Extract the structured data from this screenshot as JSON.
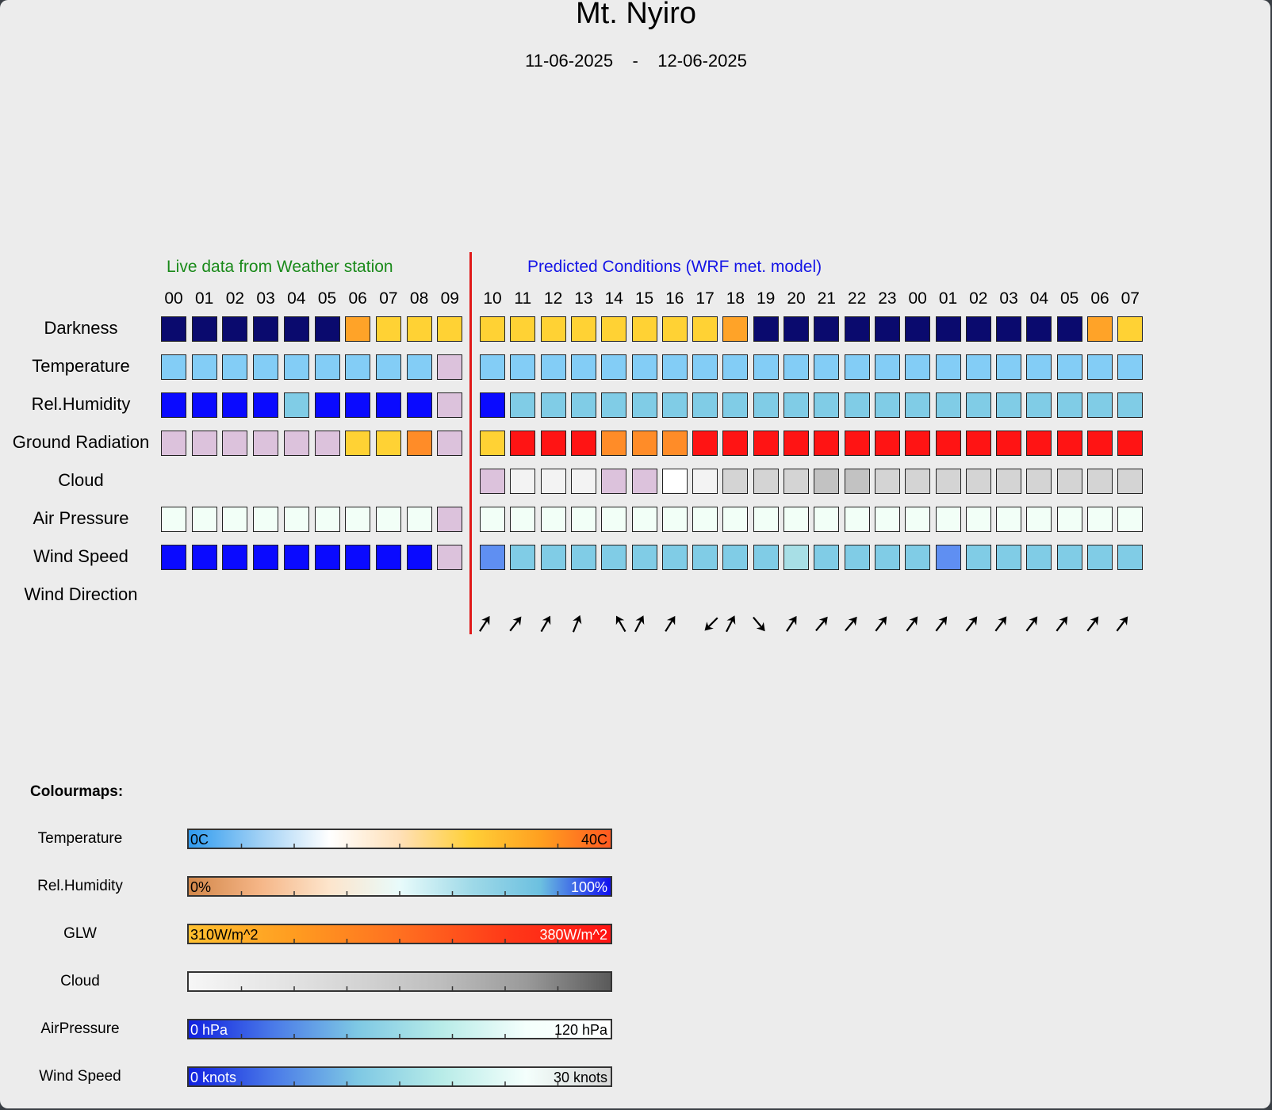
{
  "header": {
    "title": "Mt. Nyiro",
    "date_start": "11-06-2025",
    "date_sep": "-",
    "date_end": "12-06-2025"
  },
  "sections": {
    "live": "Live data from Weather station",
    "predicted": "Predicted Conditions (WRF met. model)"
  },
  "hours": [
    "00",
    "01",
    "02",
    "03",
    "04",
    "05",
    "06",
    "07",
    "08",
    "09",
    "10",
    "11",
    "12",
    "13",
    "14",
    "15",
    "16",
    "17",
    "18",
    "19",
    "20",
    "21",
    "22",
    "23",
    "00",
    "01",
    "02",
    "03",
    "04",
    "05",
    "06",
    "07"
  ],
  "palette": {
    "N": "#0a0a6e",
    "O": "#ffa328",
    "Y": "#ffd234",
    "L": "#83cdf6",
    "P": "#dcc2dc",
    "B": "#0a0aff",
    "S": "#80cce6",
    "R": "#ff1414",
    "F": "#ff8c28",
    "W": "#f3f3f3",
    "X": "#ffffff",
    "G": "#d4d4d4",
    "H": "#c2c2c2",
    "A": "#f2fff7",
    "M": "#5f8ff2",
    "T": "#a8dfe6"
  },
  "rows": [
    {
      "label": "Darkness",
      "cells": "NNNNNNOYYY YYYYYYYYONNNNNNNNNNNOY"
    },
    {
      "label": "Temperature",
      "cells": "LLLLLLLLLP LLLLLLLLLLLLLLLLLLLLLL"
    },
    {
      "label": "Rel.Humidity",
      "cells": "BBBBSBBBBP BSSSSSSSSSSSSSSSSSSSSS"
    },
    {
      "label": "Ground Radiation",
      "cells": "PPPPPPYYFP YRRRFFFRRRRRRRRRRRRRRR"
    },
    {
      "label": "Cloud",
      "cells": ".......... PWWWPPXWGGGHHGGGGGGGGG"
    },
    {
      "label": "Air Pressure",
      "cells": "AAAAAAAAAP AAAAAAAAAAAAAAAAAAAAAA"
    },
    {
      "label": "Wind Speed",
      "cells": "BBBBBBBBBP MSSSSSSSSSTSSSSMSSSSSS"
    },
    {
      "label": "Wind Direction",
      "cells": ""
    }
  ],
  "wind_direction_deg": [
    33,
    38,
    30,
    22,
    -30,
    27,
    32,
    -135,
    27,
    140,
    33,
    40,
    40,
    37,
    37,
    37,
    37,
    37,
    37,
    37,
    37,
    37
  ],
  "colourmaps": {
    "heading": "Colourmaps:",
    "items": [
      {
        "label": "Temperature",
        "min": "0C",
        "max": "40C",
        "min_color": "#000000",
        "max_color": "#000000",
        "gradient": [
          "#2f9bef",
          "#9fd0f5",
          "#ffffff",
          "#ffe0b8",
          "#ffd038",
          "#ffa020",
          "#ff5a20"
        ]
      },
      {
        "label": "Rel.Humidity",
        "min": "0%",
        "max": "100%",
        "min_color": "#000000",
        "max_color": "#ffffff",
        "gradient": [
          "#d2874a",
          "#f5b586",
          "#fde5cc",
          "#e8fbfb",
          "#a0dae8",
          "#6cc0e0",
          "#1010ee"
        ]
      },
      {
        "label": "GLW",
        "min": "310W/m^2",
        "max": "380W/m^2",
        "min_color": "#000000",
        "max_color": "#ffffff",
        "gradient": [
          "#ffc030",
          "#ff9c20",
          "#ff7020",
          "#ff3a18",
          "#ff1414"
        ]
      },
      {
        "label": "Cloud",
        "min": "",
        "max": "",
        "min_color": "#000000",
        "max_color": "#000000",
        "gradient": [
          "#f6f6f6",
          "#e6e6e6",
          "#d4d4d4",
          "#bdbdbd",
          "#9a9a9a",
          "#5a5a5a"
        ]
      },
      {
        "label": "AirPressure",
        "min": "0 hPa",
        "max": "120 hPa",
        "min_color": "#ffffff",
        "max_color": "#000000",
        "gradient": [
          "#1020e0",
          "#4a7ae8",
          "#7ec8e4",
          "#b8ece8",
          "#f4fffc",
          "#ffffff"
        ]
      },
      {
        "label": "Wind Speed",
        "min": "0 knots",
        "max": "30 knots",
        "min_color": "#ffffff",
        "max_color": "#000000",
        "gradient": [
          "#1020e0",
          "#4a7ae8",
          "#7ec8e4",
          "#b8ece8",
          "#f4fffc",
          "#d8d8d8"
        ]
      }
    ]
  }
}
